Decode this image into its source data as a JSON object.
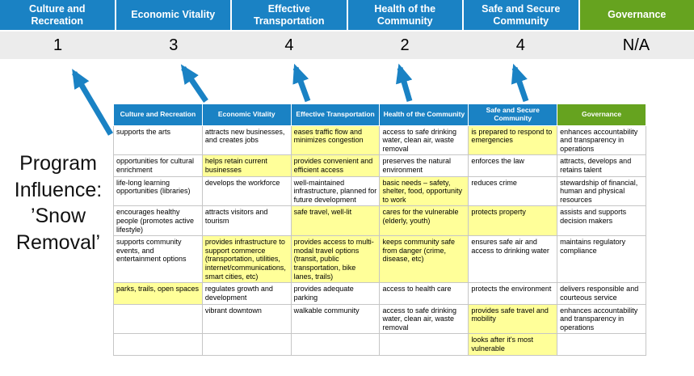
{
  "title": "Program Influence: ’Snow Removal’",
  "colors": {
    "blue": "#1a82c4",
    "green": "#66a31f",
    "highlight": "#ffff99",
    "score_band": "#ececec"
  },
  "summary": {
    "columns": [
      {
        "label": "Culture and Recreation",
        "score": "1",
        "type": "blue"
      },
      {
        "label": "Economic Vitality",
        "score": "3",
        "type": "blue"
      },
      {
        "label": "Effective Transportation",
        "score": "4",
        "type": "blue"
      },
      {
        "label": "Health of the Community",
        "score": "2",
        "type": "blue"
      },
      {
        "label": "Safe and Secure Community",
        "score": "4",
        "type": "blue"
      },
      {
        "label": "Governance",
        "score": "N/A",
        "type": "green"
      }
    ]
  },
  "matrix": {
    "headers": [
      {
        "label": "Culture and Recreation",
        "type": "blue"
      },
      {
        "label": "Economic Vitality",
        "type": "blue"
      },
      {
        "label": "Effective Transportation",
        "type": "blue"
      },
      {
        "label": "Health of the Community",
        "type": "blue"
      },
      {
        "label": "Safe and Secure Community",
        "type": "blue"
      },
      {
        "label": "Governance",
        "type": "green"
      }
    ],
    "rows": [
      [
        {
          "text": "supports the arts",
          "highlight": false
        },
        {
          "text": "attracts new businesses, and creates jobs",
          "highlight": false
        },
        {
          "text": "eases traffic flow and minimizes congestion",
          "highlight": true
        },
        {
          "text": "access to safe drinking water, clean air, waste removal",
          "highlight": false
        },
        {
          "text": "is prepared to respond to emergencies",
          "highlight": true
        },
        {
          "text": "enhances accountability and transparency in operations",
          "highlight": false
        }
      ],
      [
        {
          "text": "opportunities for cultural enrichment",
          "highlight": false
        },
        {
          "text": "helps retain current businesses",
          "highlight": true
        },
        {
          "text": "provides convenient and efficient access",
          "highlight": true
        },
        {
          "text": "preserves the natural environment",
          "highlight": false
        },
        {
          "text": "enforces the law",
          "highlight": false
        },
        {
          "text": "attracts, develops and retains talent",
          "highlight": false
        }
      ],
      [
        {
          "text": "life-long learning opportunities (libraries)",
          "highlight": false
        },
        {
          "text": "develops the workforce",
          "highlight": false
        },
        {
          "text": "well-maintained infrastructure, planned for future development",
          "highlight": false
        },
        {
          "text": "basic needs – safety, shelter, food, opportunity to work",
          "highlight": true
        },
        {
          "text": "reduces crime",
          "highlight": false
        },
        {
          "text": "stewardship of financial, human and physical resources",
          "highlight": false
        }
      ],
      [
        {
          "text": "encourages healthy people (promotes active lifestyle)",
          "highlight": false
        },
        {
          "text": "attracts visitors and tourism",
          "highlight": false
        },
        {
          "text": "safe travel, well-lit",
          "highlight": true
        },
        {
          "text": "cares for the vulnerable (elderly, youth)",
          "highlight": true
        },
        {
          "text": "protects property",
          "highlight": true
        },
        {
          "text": "assists and supports decision makers",
          "highlight": false
        }
      ],
      [
        {
          "text": "supports community events, and entertainment options",
          "highlight": false
        },
        {
          "text": "provides infrastructure to support commerce (transportation, utilities, internet/communications, smart cities, etc)",
          "highlight": true
        },
        {
          "text": "provides access to multi-modal travel options (transit, public transportation, bike lanes, trails)",
          "highlight": true
        },
        {
          "text": "keeps community safe from danger (crime, disease, etc)",
          "highlight": true
        },
        {
          "text": "ensures safe air and access to drinking water",
          "highlight": false
        },
        {
          "text": "maintains regulatory compliance",
          "highlight": false
        }
      ],
      [
        {
          "text": "parks, trails, open spaces",
          "highlight": true
        },
        {
          "text": "regulates growth and development",
          "highlight": false
        },
        {
          "text": "provides adequate parking",
          "highlight": false
        },
        {
          "text": "access to health care",
          "highlight": false
        },
        {
          "text": "protects the environment",
          "highlight": false
        },
        {
          "text": "delivers responsible and courteous service",
          "highlight": false
        }
      ],
      [
        {
          "text": "",
          "highlight": false
        },
        {
          "text": "vibrant downtown",
          "highlight": false
        },
        {
          "text": "walkable community",
          "highlight": false
        },
        {
          "text": "access to safe drinking water, clean air, waste removal",
          "highlight": false
        },
        {
          "text": "provides safe travel and mobility",
          "highlight": true
        },
        {
          "text": "enhances accountability and transparency in operations",
          "highlight": false
        }
      ],
      [
        {
          "text": "",
          "highlight": false
        },
        {
          "text": "",
          "highlight": false
        },
        {
          "text": "",
          "highlight": false
        },
        {
          "text": "",
          "highlight": false
        },
        {
          "text": "looks after it's most vulnerable",
          "highlight": true
        },
        {
          "text": "",
          "highlight": false
        }
      ]
    ]
  }
}
